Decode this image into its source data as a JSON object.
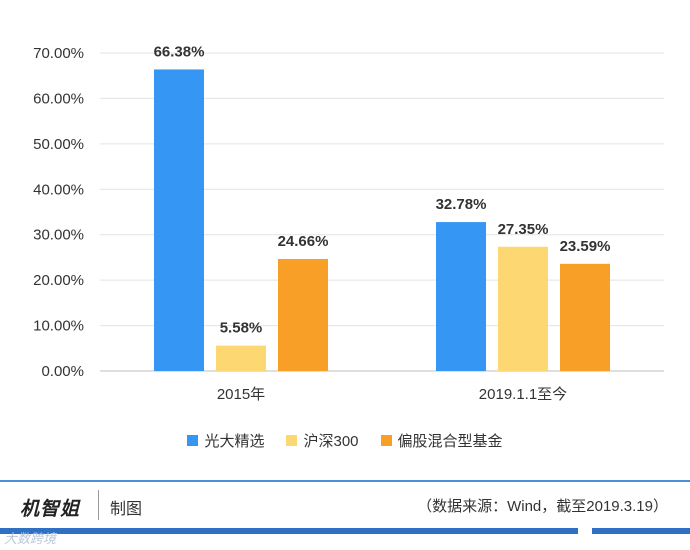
{
  "chart_data": {
    "type": "bar",
    "categories": [
      "2015年",
      "2019.1.1至今"
    ],
    "series": [
      {
        "name": "光大精选",
        "color": "#3596f3",
        "values": [
          66.38,
          32.78
        ],
        "labels": [
          "66.38%",
          "32.78%"
        ]
      },
      {
        "name": "沪深300",
        "color": "#fdd872",
        "values": [
          5.58,
          27.35
        ],
        "labels": [
          "5.58%",
          "27.35%"
        ]
      },
      {
        "name": "偏股混合型基金",
        "color": "#f79f27",
        "values": [
          24.66,
          23.59
        ],
        "labels": [
          "24.66%",
          "23.59%"
        ]
      }
    ],
    "ylim": [
      0,
      70
    ],
    "yticks": [
      "0.00%",
      "10.00%",
      "20.00%",
      "30.00%",
      "40.00%",
      "50.00%",
      "60.00%",
      "70.00%"
    ],
    "grid": true,
    "legend_position": "bottom"
  },
  "footer": {
    "brand": "机智姐",
    "made_label": "制图",
    "source": "（数据来源：Wind，截至2019.3.19）",
    "watermark": "大数跨境"
  }
}
